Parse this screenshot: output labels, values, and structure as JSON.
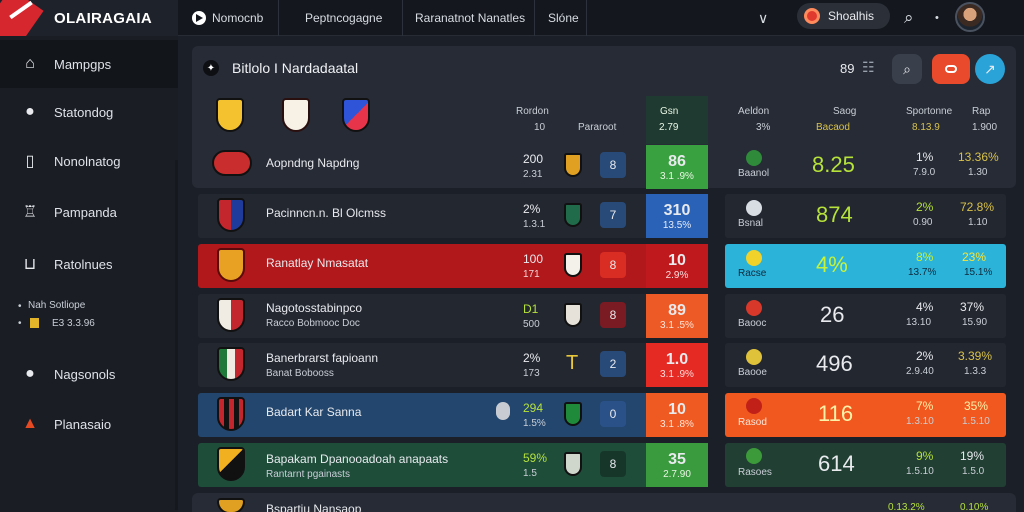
{
  "brand": {
    "name": "OLAIRAGAIA"
  },
  "topnav": {
    "tab1": "Nomocnb",
    "tab2": "Peptncogagne",
    "tab3": "Raranatnot Nanatles",
    "tab4": "Slóne",
    "chevron": "∨",
    "user_pill": "Shoalhis",
    "search": "⌕",
    "more": "•"
  },
  "sidebar": {
    "items": [
      {
        "label": "Mampgps",
        "icon": "home-icon"
      },
      {
        "label": "Statondog",
        "icon": "chat-icon"
      },
      {
        "label": "Nonolnatog",
        "icon": "document-icon"
      },
      {
        "label": "Pampanda",
        "icon": "trophy-icon"
      },
      {
        "label": "Ratolnues",
        "icon": "bracket-icon"
      },
      {
        "label": "Nagsonols",
        "icon": "chat-icon"
      },
      {
        "label": "Planasaio",
        "icon": "flag-icon"
      }
    ],
    "sub": {
      "line1": "Nah Sotliope",
      "line2": "E3 3.3.96"
    }
  },
  "panel": {
    "title": "Bitlolo I Nardadaatal",
    "badge": "89",
    "head": {
      "col_a": "Rordon",
      "col_a_sub1": "10",
      "col_a_sub2": "Pararoot",
      "col_b": "Gsn",
      "col_b_sub": "2.79",
      "col_c": "Aeldon",
      "col_c_sub": "3%",
      "col_d": "Saog",
      "col_d_sub": "Bacaod",
      "col_e": "Sportonne",
      "col_e_sub": "8.13.9",
      "col_f": "Rap",
      "col_f_sub": "1.900"
    }
  },
  "rows": [
    {
      "team": "Aopndng Napdng",
      "a1": "200",
      "a2": "2.31",
      "chip": "8",
      "s1": "86",
      "s2": "3.1 .9%",
      "r_lbl": "Baanol",
      "r_big": "8.25",
      "r_p1": "1%",
      "r_p1b": "7.9.0",
      "r_p2": "13.36%",
      "r_p2b": "1.30"
    },
    {
      "team": "Pacinncn.n. Bl Olcmss",
      "a1": "2%",
      "a2": "1.3.1",
      "chip": "7",
      "s1": "310",
      "s2": "13.5%",
      "r_lbl": "Bsnal",
      "r_big": "874",
      "r_p1": "2%",
      "r_p1b": "0.90",
      "r_p2": "72.8%",
      "r_p2b": "1.10"
    },
    {
      "team": "Ranatlay Nmasatat",
      "a1": "100",
      "a2": "171",
      "chip": "8",
      "s1": "10",
      "s2": "2.9%",
      "r_lbl": "Racse",
      "r_big": "4%",
      "r_p1": "8%",
      "r_p1b": "13.7%",
      "r_p2": "23%",
      "r_p2b": "15.1%"
    },
    {
      "team": "Nagotosstabinpco",
      "team2": "Racco Bobmooc Doc",
      "a1": "D1",
      "a2": "500",
      "chip": "8",
      "s1": "89",
      "s2": "3.1 .5%",
      "r_lbl": "Baooc",
      "r_big": "26",
      "r_p1": "4%",
      "r_p1b": "13.10",
      "r_p2": "37%",
      "r_p2b": "15.90"
    },
    {
      "team": "Banerbrarst fapioann",
      "team2": "Banat Bobooss",
      "a1": "2%",
      "a2": "173",
      "chip": "2",
      "s1": "1.0",
      "s2": "3.1 .9%",
      "r_lbl": "Baooe",
      "r_big": "496",
      "r_p1": "2%",
      "r_p1b": "2.9.40",
      "r_p2": "3.39%",
      "r_p2b": "1.3.3"
    },
    {
      "team": "Badart Kar Sanna",
      "a1": "294",
      "a2": "1.5%",
      "chip": "0",
      "s1": "10",
      "s2": "3.1 .8%",
      "r_lbl": "Rasod",
      "r_big": "116",
      "r_p1": "7%",
      "r_p1b": "1.3.10",
      "r_p2": "35%",
      "r_p2b": "1.5.10"
    },
    {
      "team": "Bapakam Dpanooadoah anapaats",
      "team2": "Rantarnt pgainasts",
      "a1": "59%",
      "a2": "1.5",
      "chip": "8",
      "s1": "35",
      "s2": "2.7.90",
      "r_lbl": "Rasoes",
      "r_big": "614",
      "r_p1": "9%",
      "r_p1b": "1.5.10",
      "r_p2": "19%",
      "r_p2b": "1.5.0"
    },
    {
      "team": "Bspartiu Nansaop",
      "r_p1": "0.13.2%",
      "r_p2": "0.10%"
    }
  ]
}
